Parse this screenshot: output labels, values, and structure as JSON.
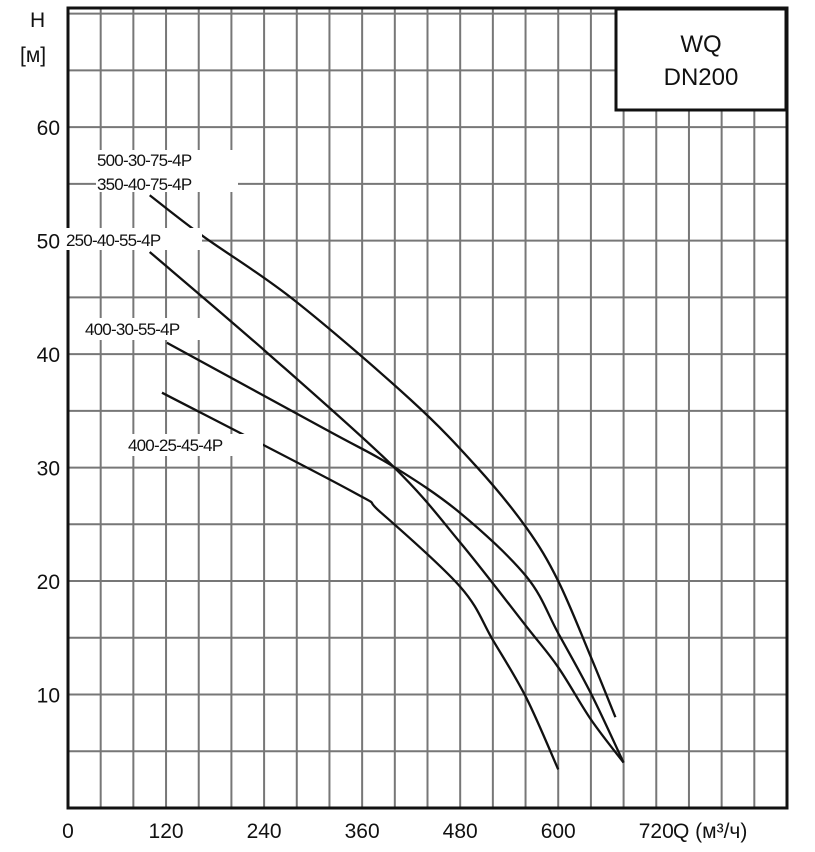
{
  "chart_data": {
    "type": "line",
    "title": "WQ\nDN200",
    "title_lines": [
      "WQ",
      "DN200"
    ],
    "xlabel": "Q (м³/ч)",
    "ylabel_lines": [
      "H",
      "[м]"
    ],
    "xlim": [
      0,
      880
    ],
    "ylim": [
      0,
      70.5
    ],
    "x_grid_step": 40,
    "y_grid_step": 5,
    "grid": true,
    "x_ticks": [
      0,
      120,
      240,
      360,
      480,
      600,
      720
    ],
    "y_ticks": [
      10,
      20,
      30,
      40,
      50,
      60
    ],
    "colors": {
      "line": "#111111",
      "grid": "#777777"
    },
    "series": [
      {
        "name": "500-30-75-4P / 350-40-75-4P",
        "x": [
          100,
          165,
          276,
          419,
          501,
          561,
          600,
          640,
          670
        ],
        "y": [
          54,
          50.4,
          44.8,
          36,
          30,
          24.7,
          20,
          13.3,
          8
        ]
      },
      {
        "name": "250-40-55-4P",
        "x": [
          100,
          244,
          398,
          480,
          561,
          600,
          640,
          680
        ],
        "y": [
          49,
          40.1,
          30.1,
          23.4,
          16,
          12.4,
          7.8,
          4
        ]
      },
      {
        "name": "400-30-55-4P",
        "x": [
          121,
          317,
          398,
          480,
          561,
          600,
          640,
          680
        ],
        "y": [
          41,
          33.3,
          30.1,
          26,
          20.4,
          15.4,
          10.1,
          4
        ]
      },
      {
        "name": "400-25-45-4P",
        "x": [
          115,
          345,
          382,
          480,
          520,
          561,
          600
        ],
        "y": [
          36.6,
          28,
          26.1,
          19.5,
          14.8,
          9.7,
          3.4
        ]
      }
    ],
    "annotations": [
      "500-30-75-4P",
      "350-40-75-4P",
      "250-40-55-4P",
      "400-30-55-4P",
      "400-25-45-4P"
    ]
  }
}
